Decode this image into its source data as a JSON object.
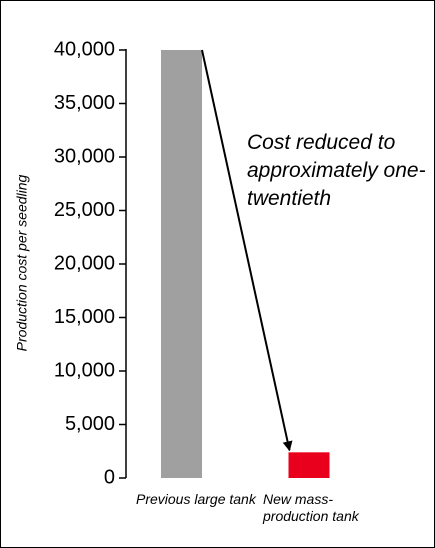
{
  "chart_data": {
    "type": "bar",
    "y_label": "Production cost per seedling",
    "annotation": "Cost reduced to approximately one-twentieth",
    "categories": [
      "Previous large tank",
      "New mass-production tank"
    ],
    "values": [
      40000,
      2400
    ],
    "colors": [
      "#a0a0a0",
      "#e8001c"
    ],
    "ylim": [
      0,
      40000
    ],
    "yticks": [
      0,
      {
        "value": 5000,
        "label": "5,000"
      },
      {
        "value": 10000,
        "label": "10,000"
      },
      {
        "value": 15000,
        "label": "15,000"
      },
      {
        "value": 20000,
        "label": "20,000"
      },
      {
        "value": 25000,
        "label": "25,000"
      },
      {
        "value": 30000,
        "label": "30,000"
      },
      {
        "value": 35000,
        "label": "35,000"
      },
      {
        "value": 40000,
        "label": "40,000"
      }
    ],
    "grid": false
  }
}
